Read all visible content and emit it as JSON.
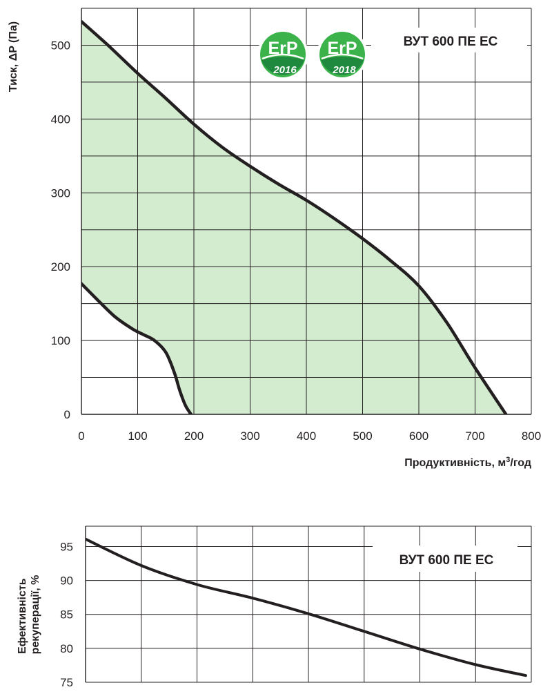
{
  "colors": {
    "fill": "#d3ebcf",
    "curve": "#231f20",
    "grid": "#231f20",
    "erp_green": "#3bb34a",
    "erp_dark": "#1a7f3a"
  },
  "badges": [
    {
      "text": "ErP",
      "year": "2016"
    },
    {
      "text": "ErP",
      "year": "2018"
    }
  ],
  "chart_data": [
    {
      "type": "area",
      "title": "ВУТ 600 ПЕ ЕС",
      "xlabel": "Продуктивність, м³/год",
      "ylabel": "Тиск, ΔP (Па)",
      "xlim": [
        0,
        800
      ],
      "ylim": [
        0,
        550
      ],
      "xticks": [
        0,
        100,
        200,
        300,
        400,
        500,
        600,
        700,
        800
      ],
      "yticks": [
        0,
        100,
        200,
        300,
        400,
        500
      ],
      "grid": true,
      "series": [
        {
          "role": "upper",
          "x": [
            0,
            50,
            100,
            150,
            200,
            250,
            300,
            350,
            400,
            450,
            500,
            550,
            600,
            650,
            700,
            755
          ],
          "y": [
            532,
            498,
            462,
            428,
            393,
            362,
            336,
            312,
            290,
            265,
            238,
            208,
            174,
            124,
            63,
            0
          ]
        },
        {
          "role": "lower",
          "x": [
            0,
            30,
            60,
            90,
            110,
            130,
            150,
            165,
            175,
            185,
            195
          ],
          "y": [
            177,
            154,
            132,
            116,
            108,
            100,
            84,
            57,
            32,
            12,
            0
          ]
        }
      ]
    },
    {
      "type": "line",
      "title": "ВУТ 600 ПЕ ЕС",
      "ylabel": "Ефективність рекуперації, %",
      "xlim": [
        0,
        800
      ],
      "ylim": [
        75,
        98
      ],
      "yticks": [
        75,
        80,
        85,
        90,
        95
      ],
      "grid": true,
      "series": [
        {
          "x": [
            0,
            100,
            200,
            300,
            400,
            500,
            600,
            700,
            790
          ],
          "y": [
            96.1,
            92.2,
            89.4,
            87.4,
            85.1,
            82.5,
            79.9,
            77.6,
            76.0
          ]
        }
      ]
    }
  ]
}
